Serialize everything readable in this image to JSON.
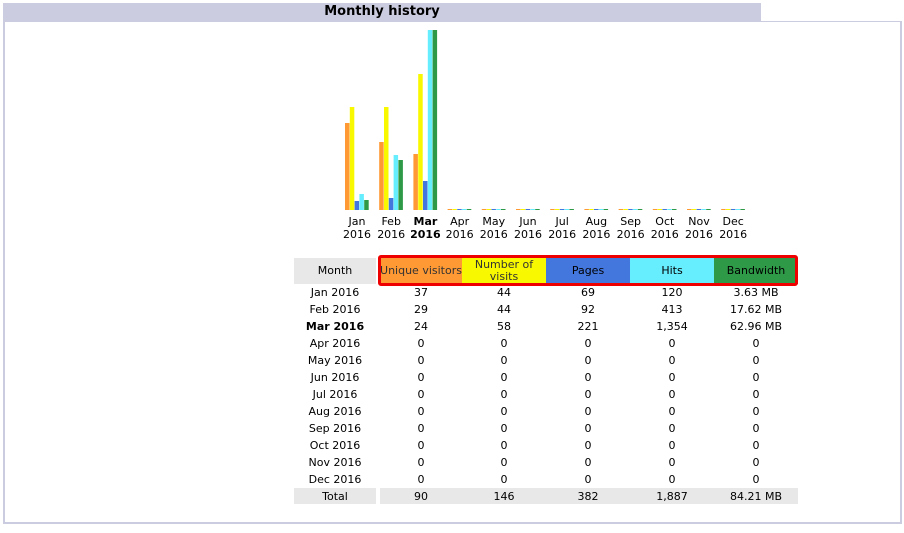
{
  "section_title": "Monthly history",
  "colors": {
    "unique_visitors": "#ff9933",
    "number_of_visits": "#f8f800",
    "pages": "#4477dd",
    "hits": "#66eeff",
    "bandwidth": "#2e9a48"
  },
  "table": {
    "headers": {
      "month": "Month",
      "unique_visitors": "Unique visitors",
      "number_of_visits": "Number of visits",
      "pages": "Pages",
      "hits": "Hits",
      "bandwidth": "Bandwidth"
    },
    "rows": [
      {
        "month": "Jan 2016",
        "uv": "37",
        "nv": "44",
        "pages": "69",
        "hits": "120",
        "bw": "3.63 MB",
        "bold": false
      },
      {
        "month": "Feb 2016",
        "uv": "29",
        "nv": "44",
        "pages": "92",
        "hits": "413",
        "bw": "17.62 MB",
        "bold": false
      },
      {
        "month": "Mar 2016",
        "uv": "24",
        "nv": "58",
        "pages": "221",
        "hits": "1,354",
        "bw": "62.96 MB",
        "bold": true
      },
      {
        "month": "Apr 2016",
        "uv": "0",
        "nv": "0",
        "pages": "0",
        "hits": "0",
        "bw": "0",
        "bold": false
      },
      {
        "month": "May 2016",
        "uv": "0",
        "nv": "0",
        "pages": "0",
        "hits": "0",
        "bw": "0",
        "bold": false
      },
      {
        "month": "Jun 2016",
        "uv": "0",
        "nv": "0",
        "pages": "0",
        "hits": "0",
        "bw": "0",
        "bold": false
      },
      {
        "month": "Jul 2016",
        "uv": "0",
        "nv": "0",
        "pages": "0",
        "hits": "0",
        "bw": "0",
        "bold": false
      },
      {
        "month": "Aug 2016",
        "uv": "0",
        "nv": "0",
        "pages": "0",
        "hits": "0",
        "bw": "0",
        "bold": false
      },
      {
        "month": "Sep 2016",
        "uv": "0",
        "nv": "0",
        "pages": "0",
        "hits": "0",
        "bw": "0",
        "bold": false
      },
      {
        "month": "Oct 2016",
        "uv": "0",
        "nv": "0",
        "pages": "0",
        "hits": "0",
        "bw": "0",
        "bold": false
      },
      {
        "month": "Nov 2016",
        "uv": "0",
        "nv": "0",
        "pages": "0",
        "hits": "0",
        "bw": "0",
        "bold": false
      },
      {
        "month": "Dec 2016",
        "uv": "0",
        "nv": "0",
        "pages": "0",
        "hits": "0",
        "bw": "0",
        "bold": false
      }
    ],
    "total": {
      "label": "Total",
      "uv": "90",
      "nv": "146",
      "pages": "382",
      "hits": "1,887",
      "bw": "84.21 MB"
    }
  },
  "chart_data": {
    "type": "bar",
    "categories": [
      "Jan 2016",
      "Feb 2016",
      "Mar 2016",
      "Apr 2016",
      "May 2016",
      "Jun 2016",
      "Jul 2016",
      "Aug 2016",
      "Sep 2016",
      "Oct 2016",
      "Nov 2016",
      "Dec 2016"
    ],
    "month_names": [
      "Jan",
      "Feb",
      "Mar",
      "Apr",
      "May",
      "Jun",
      "Jul",
      "Aug",
      "Sep",
      "Oct",
      "Nov",
      "Dec"
    ],
    "year_labels": [
      "2016",
      "2016",
      "2016",
      "2016",
      "2016",
      "2016",
      "2016",
      "2016",
      "2016",
      "2016",
      "2016",
      "2016"
    ],
    "bold_index": 2,
    "series": [
      {
        "name": "Unique visitors",
        "values": [
          37,
          29,
          24,
          0,
          0,
          0,
          0,
          0,
          0,
          0,
          0,
          0
        ]
      },
      {
        "name": "Number of visits",
        "values": [
          44,
          44,
          58,
          0,
          0,
          0,
          0,
          0,
          0,
          0,
          0,
          0
        ]
      },
      {
        "name": "Pages",
        "values": [
          69,
          92,
          221,
          0,
          0,
          0,
          0,
          0,
          0,
          0,
          0,
          0
        ]
      },
      {
        "name": "Hits",
        "values": [
          120,
          413,
          1354,
          0,
          0,
          0,
          0,
          0,
          0,
          0,
          0,
          0
        ]
      },
      {
        "name": "Bandwidth",
        "values": [
          3.63,
          17.62,
          62.96,
          0,
          0,
          0,
          0,
          0,
          0,
          0,
          0,
          0
        ]
      }
    ]
  }
}
